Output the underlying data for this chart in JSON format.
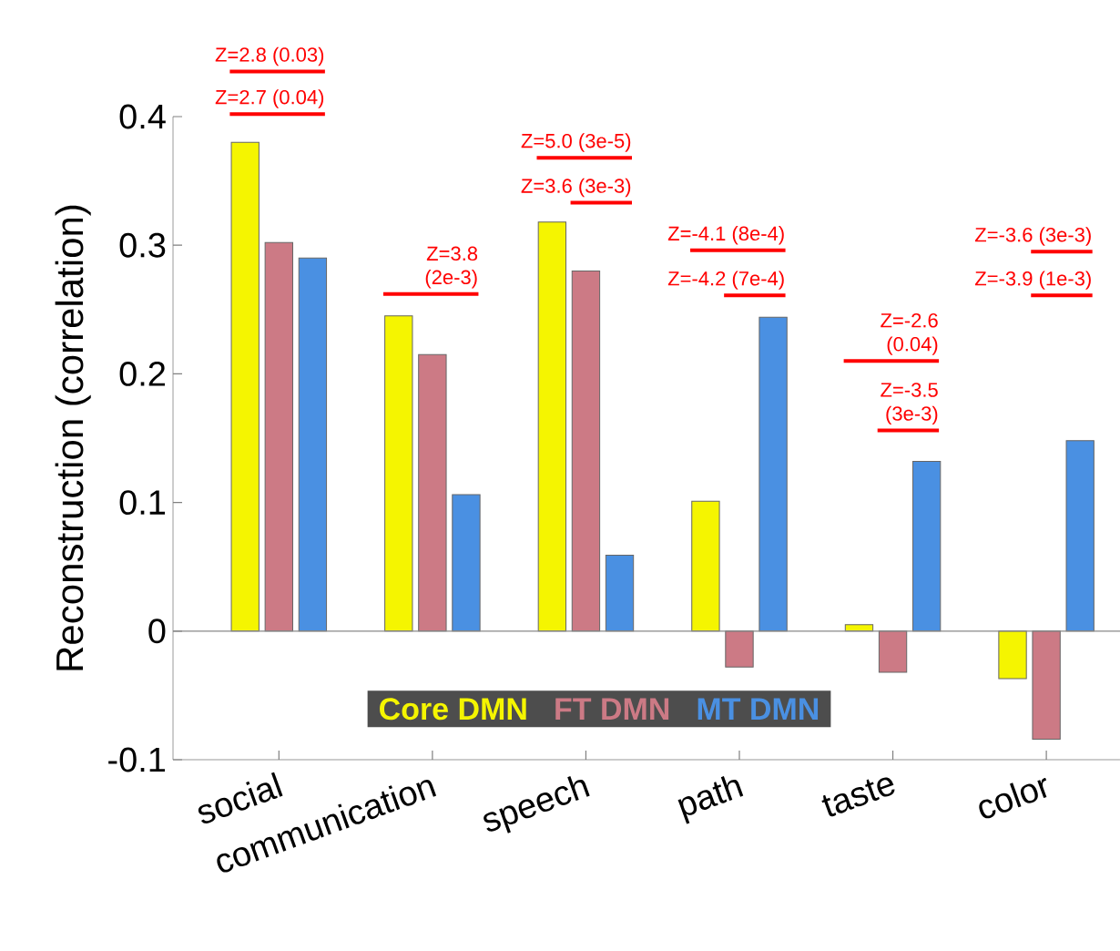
{
  "chart_data": {
    "type": "bar",
    "ylabel": "Reconstruction (correlation)",
    "categories": [
      "social",
      "communication",
      "speech",
      "path",
      "taste",
      "color"
    ],
    "series": [
      {
        "name": "Core DMN",
        "color": "#f5f500",
        "values": [
          0.38,
          0.245,
          0.318,
          0.101,
          0.005,
          -0.037
        ]
      },
      {
        "name": "FT DMN",
        "color": "#cc7a85",
        "values": [
          0.302,
          0.215,
          0.28,
          -0.028,
          -0.032,
          -0.084
        ]
      },
      {
        "name": "MT DMN",
        "color": "#4a90e2",
        "values": [
          0.29,
          0.106,
          0.059,
          0.244,
          0.132,
          0.148
        ]
      }
    ],
    "ylim": [
      -0.1,
      0.4
    ],
    "yticks": [
      -0.1,
      0,
      0.1,
      0.2,
      0.3,
      0.4
    ],
    "ref_lines": [
      {
        "axis": "y",
        "value": 0,
        "color": "#888888"
      }
    ],
    "legend": "bottom",
    "annotations": [
      "Z=2.8 (0.03)",
      "Z=2.7 (0.04)",
      "Z=3.8 (2e-3)",
      "Z=5.0 (3e-5)",
      "Z=3.6 (3e-3)",
      "Z=-4.1 (8e-4)",
      "Z=-4.2 (7e-4)",
      "Z=-2.6 (0.04)",
      "Z=-3.5 (3e-3)",
      "Z=-3.6 (3e-3)",
      "Z=-3.9 (1e-3)"
    ]
  }
}
